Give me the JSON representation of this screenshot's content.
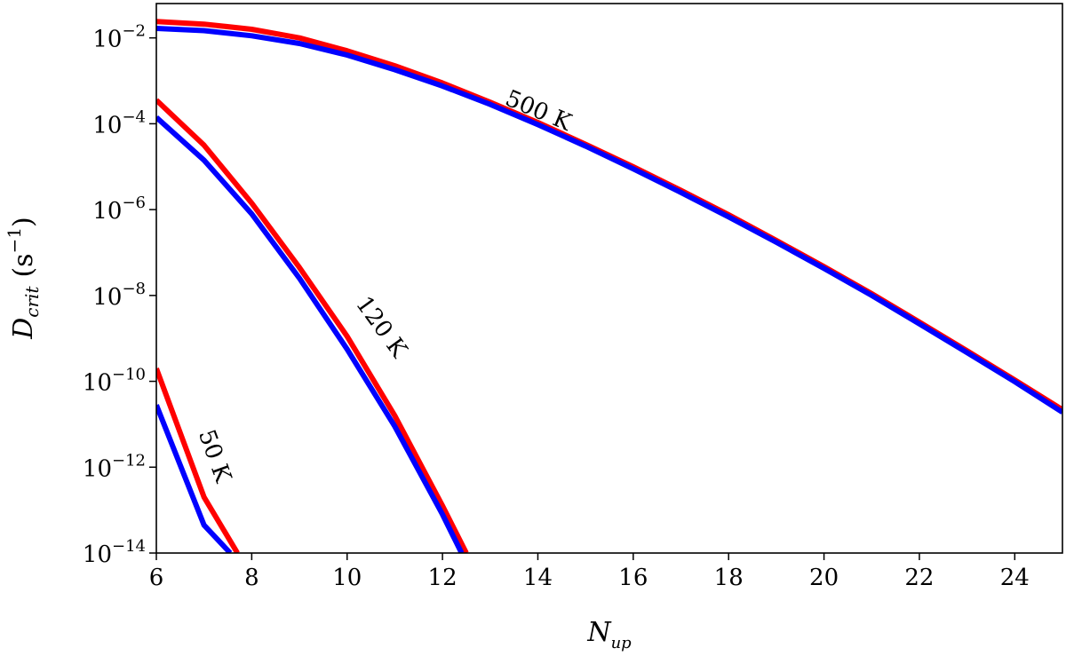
{
  "chart_data": {
    "type": "line",
    "xlabel": "N",
    "xlabel_sub": "up",
    "ylabel_script": "D",
    "ylabel_sub": "crit",
    "ylabel_unit_base": "(s",
    "ylabel_unit_exp": "−1",
    "ylabel_unit_close": ")",
    "xlim": [
      6,
      25
    ],
    "ylim_log10": [
      -14,
      -1.2
    ],
    "y_scale": "log",
    "grid": false,
    "xticks": [
      6,
      8,
      10,
      12,
      14,
      16,
      18,
      20,
      22,
      24
    ],
    "xtick_labels": [
      "6",
      "8",
      "10",
      "12",
      "14",
      "16",
      "18",
      "20",
      "22",
      "24"
    ],
    "yticks_log10": [
      -2,
      -4,
      -6,
      -8,
      -10,
      -12,
      -14
    ],
    "ytick_labels": [
      {
        "base": "10",
        "exp": "−2"
      },
      {
        "base": "10",
        "exp": "−4"
      },
      {
        "base": "10",
        "exp": "−6"
      },
      {
        "base": "10",
        "exp": "−8"
      },
      {
        "base": "10",
        "exp": "−10"
      },
      {
        "base": "10",
        "exp": "−12"
      },
      {
        "base": "10",
        "exp": "−14"
      }
    ],
    "series": [
      {
        "color": "#ff0000",
        "x": [
          6,
          7,
          8,
          9,
          10,
          11,
          12,
          13,
          14,
          15,
          16,
          17,
          18,
          19,
          20,
          21,
          22,
          23,
          24,
          25
        ],
        "log10_y": [
          -1.62,
          -1.68,
          -1.8,
          -2.0,
          -2.3,
          -2.65,
          -3.05,
          -3.5,
          -3.97,
          -4.48,
          -5.0,
          -5.55,
          -6.12,
          -6.72,
          -7.33,
          -7.96,
          -8.62,
          -9.29,
          -9.97,
          -10.66
        ]
      },
      {
        "color": "#0000ff",
        "x": [
          6,
          7,
          8,
          9,
          10,
          11,
          12,
          13,
          14,
          15,
          16,
          17,
          18,
          19,
          20,
          21,
          22,
          23,
          24,
          25
        ],
        "log10_y": [
          -1.78,
          -1.83,
          -1.95,
          -2.13,
          -2.4,
          -2.74,
          -3.12,
          -3.55,
          -4.02,
          -4.52,
          -5.05,
          -5.6,
          -6.17,
          -6.76,
          -7.37,
          -8.0,
          -8.66,
          -9.33,
          -10.01,
          -10.72
        ]
      },
      {
        "color": "#ff0000",
        "x": [
          6,
          7,
          8,
          9,
          10,
          11,
          12,
          12.5
        ],
        "log10_y": [
          -3.45,
          -4.5,
          -5.85,
          -7.35,
          -8.95,
          -10.8,
          -12.9,
          -14.0
        ]
      },
      {
        "color": "#0000ff",
        "x": [
          6,
          7,
          8,
          9,
          10,
          11,
          12,
          12.4
        ],
        "log10_y": [
          -3.85,
          -4.85,
          -6.1,
          -7.6,
          -9.25,
          -11.05,
          -13.1,
          -14.0
        ]
      },
      {
        "color": "#ff0000",
        "x": [
          6,
          7,
          7.7
        ],
        "log10_y": [
          -9.7,
          -12.7,
          -14.0
        ]
      },
      {
        "color": "#0000ff",
        "x": [
          6,
          7,
          7.55
        ],
        "log10_y": [
          -10.55,
          -13.35,
          -14.0
        ]
      }
    ],
    "annotations": [
      {
        "text": "500 K",
        "x": 14.0,
        "log10_y": -3.72,
        "angle": 23
      },
      {
        "text": "120 K",
        "x": 10.7,
        "log10_y": -8.75,
        "angle": 54
      },
      {
        "text": "50 K",
        "x": 7.2,
        "log10_y": -11.75,
        "angle": 70
      }
    ]
  }
}
